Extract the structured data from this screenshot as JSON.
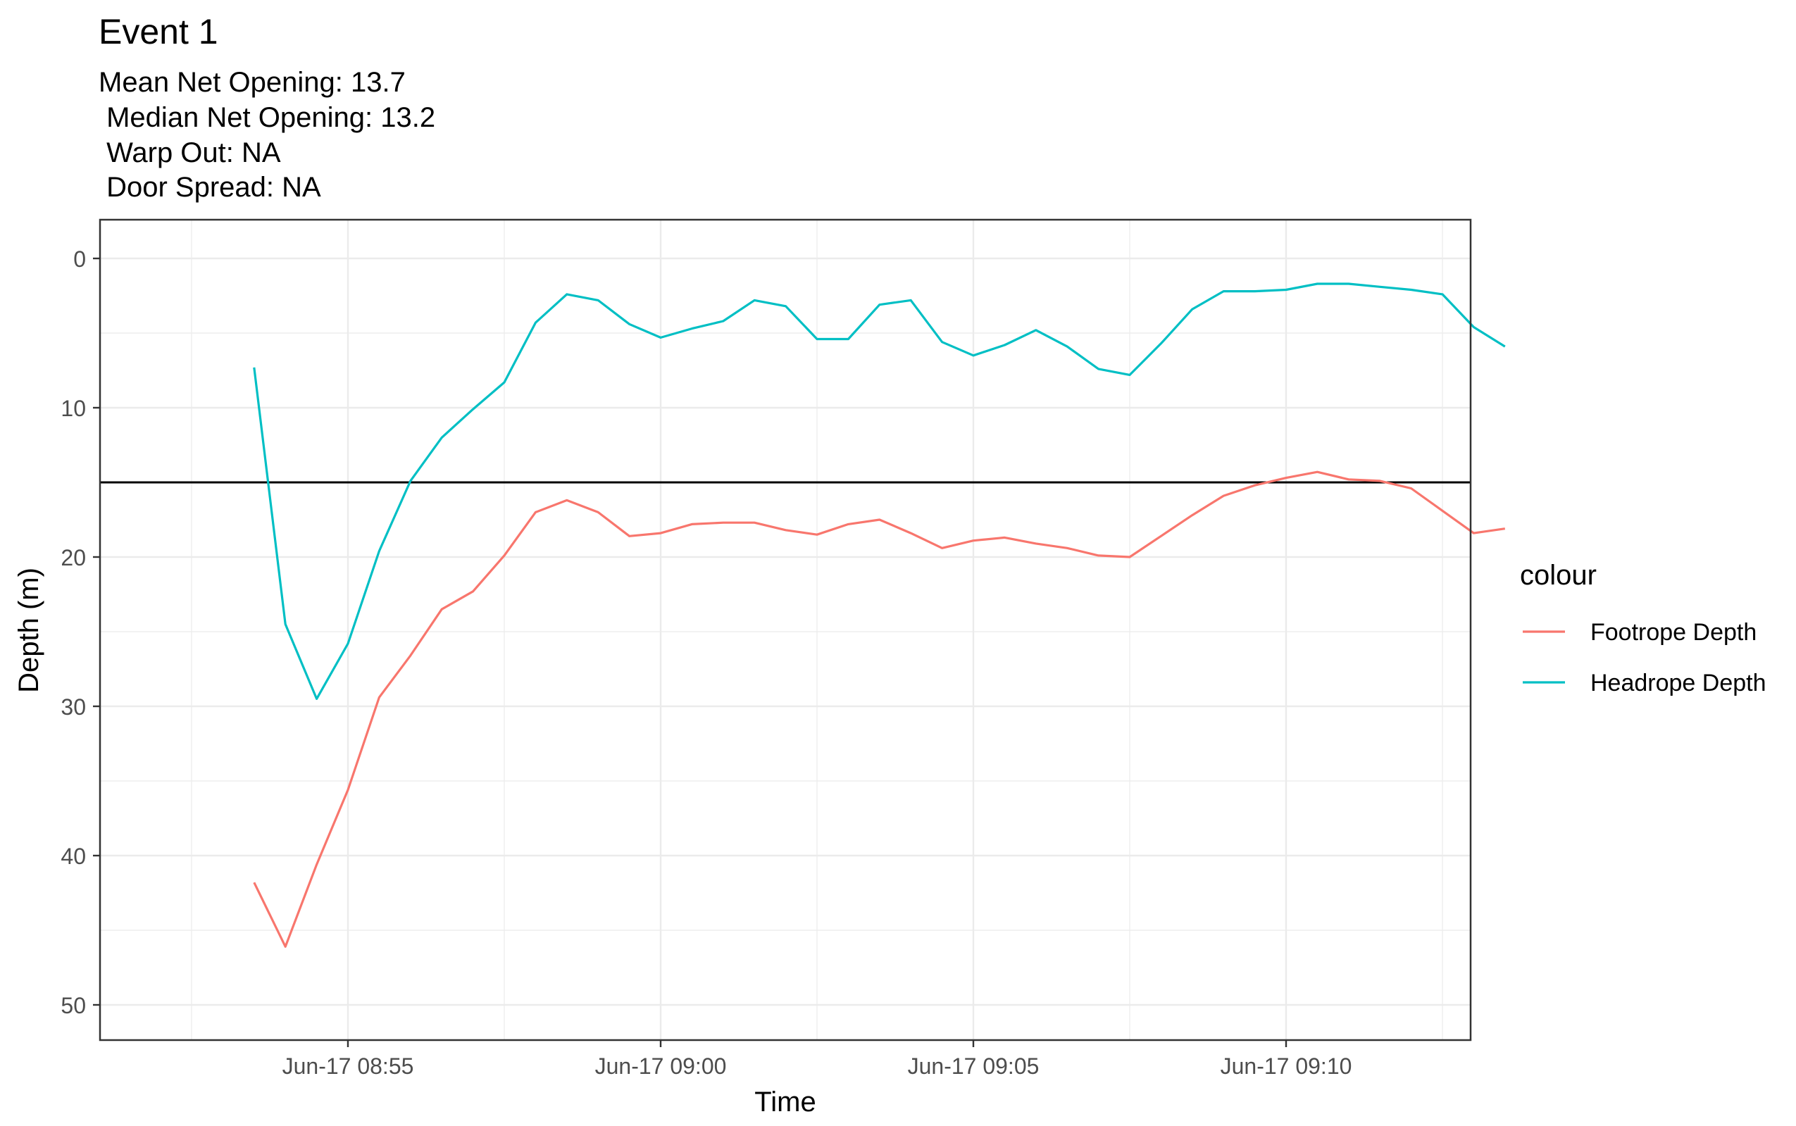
{
  "title": "Event 1",
  "subtitle_lines": [
    "Mean Net Opening: 13.7",
    " Median Net Opening: 13.2",
    " Warp Out: NA",
    " Door Spread: NA"
  ],
  "colors": {
    "footrope": "#F8766D",
    "headrope": "#00BFC4",
    "hline": "#000000",
    "grid": "#EBEBEB",
    "text": "#000000",
    "tick_text": "#4D4D4D"
  },
  "chart_data": {
    "type": "line",
    "xlabel": "Time",
    "ylabel": "Depth (m)",
    "x_ticks": [
      "Jun-17 08:55",
      "Jun-17 09:00",
      "Jun-17 09:05",
      "Jun-17 09:10"
    ],
    "x_tick_times": [
      "08:55",
      "09:00",
      "09:05",
      "09:10"
    ],
    "y_ticks": [
      0,
      10,
      20,
      30,
      40,
      50
    ],
    "y_reversed": true,
    "ylim": [
      0,
      50
    ],
    "grid": true,
    "hline": 15,
    "legend": {
      "title": "colour",
      "position": "right"
    },
    "x": [
      "08:53:00",
      "08:53:30",
      "08:54:00",
      "08:54:30",
      "08:55:00",
      "08:55:30",
      "08:56:00",
      "08:56:30",
      "08:57:00",
      "08:57:30",
      "08:58:00",
      "08:58:30",
      "08:59:00",
      "08:59:30",
      "09:00:00",
      "09:00:30",
      "09:01:00",
      "09:01:30",
      "09:02:00",
      "09:02:30",
      "09:03:00",
      "09:03:30",
      "09:04:00",
      "09:04:30",
      "09:05:00",
      "09:05:30",
      "09:06:00",
      "09:06:30",
      "09:07:00",
      "09:07:30",
      "09:08:00",
      "09:08:30",
      "09:09:00",
      "09:09:30",
      "09:10:00",
      "09:10:30",
      "09:11:00",
      "09:11:30",
      "09:12:00",
      "09:12:30",
      "09:13:00",
      "09:13:30"
    ],
    "series": [
      {
        "name": "Footrope Depth",
        "color": "#F8766D",
        "values": [
          null,
          41.8,
          46.1,
          40.6,
          35.6,
          29.4,
          26.6,
          23.5,
          22.3,
          19.9,
          17.0,
          16.2,
          17.0,
          18.6,
          18.4,
          17.8,
          17.7,
          17.7,
          18.2,
          18.5,
          17.8,
          17.5,
          18.4,
          19.4,
          18.9,
          18.7,
          19.1,
          19.4,
          19.9,
          20.0,
          18.6,
          17.2,
          15.9,
          15.2,
          14.7,
          14.3,
          14.8,
          14.9,
          15.4,
          16.9,
          18.4,
          18.1
        ]
      },
      {
        "name": "Headrope Depth",
        "color": "#00BFC4",
        "values": [
          null,
          7.3,
          24.5,
          29.5,
          25.8,
          19.6,
          14.9,
          12.0,
          10.1,
          8.3,
          4.3,
          2.4,
          2.8,
          4.4,
          5.3,
          4.7,
          4.2,
          2.8,
          3.2,
          5.4,
          5.4,
          3.1,
          2.8,
          5.6,
          6.5,
          5.8,
          4.8,
          5.9,
          7.4,
          7.8,
          5.7,
          3.4,
          2.2,
          2.2,
          2.1,
          1.7,
          1.7,
          1.9,
          2.1,
          2.4,
          4.6,
          5.9
        ]
      }
    ]
  }
}
